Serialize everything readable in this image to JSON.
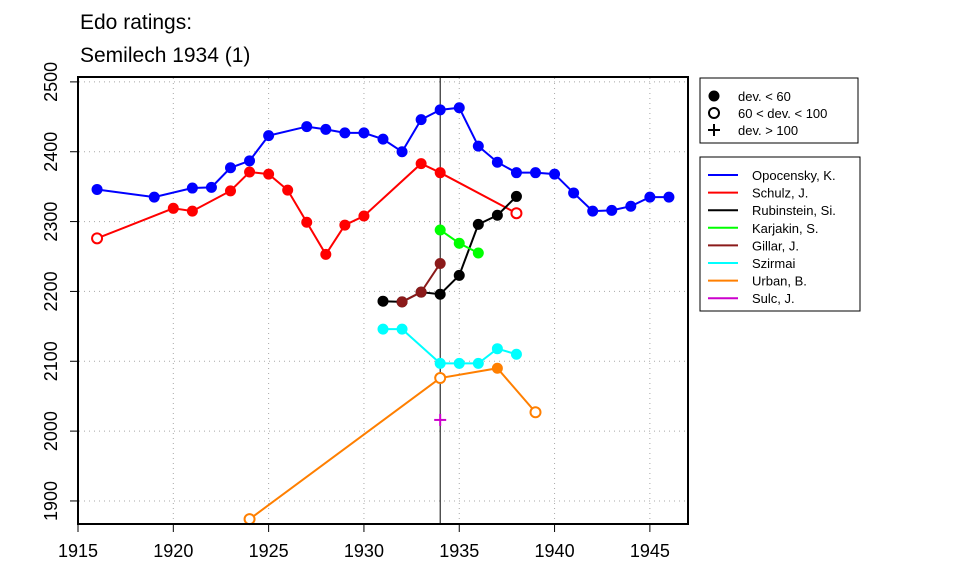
{
  "chart_data": {
    "type": "line",
    "title": "Edo ratings:",
    "subtitle": "Semilech 1934 (1)",
    "xlabel": "",
    "ylabel": "",
    "xlim": [
      1915,
      1947
    ],
    "ylim": [
      1867,
      2507
    ],
    "x_ticks": [
      1915,
      1920,
      1925,
      1930,
      1935,
      1940,
      1945
    ],
    "y_ticks": [
      1900,
      2000,
      2100,
      2200,
      2300,
      2400,
      2500
    ],
    "grid": true,
    "marker_line": {
      "x": 1934
    },
    "marker_legend": {
      "placement": "top-right, outside plot",
      "items": [
        {
          "symbol": "filled-circle",
          "label": "dev. < 60"
        },
        {
          "symbol": "open-circle",
          "label": "60 < dev. < 100"
        },
        {
          "symbol": "plus",
          "label": "dev. > 100"
        }
      ]
    },
    "legend_placement": "right, outside plot",
    "series": [
      {
        "name": "Opocensky, K.",
        "color": "#0000ff",
        "points": [
          {
            "x": 1916,
            "y": 2346,
            "m": "filled"
          },
          {
            "x": 1919,
            "y": 2335,
            "m": "filled"
          },
          {
            "x": 1921,
            "y": 2348,
            "m": "filled"
          },
          {
            "x": 1922,
            "y": 2349,
            "m": "filled"
          },
          {
            "x": 1923,
            "y": 2377,
            "m": "filled"
          },
          {
            "x": 1924,
            "y": 2387,
            "m": "filled"
          },
          {
            "x": 1925,
            "y": 2423,
            "m": "filled"
          },
          {
            "x": 1927,
            "y": 2436,
            "m": "filled"
          },
          {
            "x": 1928,
            "y": 2432,
            "m": "filled"
          },
          {
            "x": 1929,
            "y": 2427,
            "m": "filled"
          },
          {
            "x": 1930,
            "y": 2427,
            "m": "filled"
          },
          {
            "x": 1931,
            "y": 2418,
            "m": "filled"
          },
          {
            "x": 1932,
            "y": 2400,
            "m": "filled"
          },
          {
            "x": 1933,
            "y": 2446,
            "m": "filled"
          },
          {
            "x": 1934,
            "y": 2460,
            "m": "filled"
          },
          {
            "x": 1935,
            "y": 2463,
            "m": "filled"
          },
          {
            "x": 1936,
            "y": 2408,
            "m": "filled"
          },
          {
            "x": 1937,
            "y": 2385,
            "m": "filled"
          },
          {
            "x": 1938,
            "y": 2370,
            "m": "filled"
          },
          {
            "x": 1939,
            "y": 2370,
            "m": "filled"
          },
          {
            "x": 1940,
            "y": 2368,
            "m": "filled"
          },
          {
            "x": 1941,
            "y": 2341,
            "m": "filled"
          },
          {
            "x": 1942,
            "y": 2315,
            "m": "filled"
          },
          {
            "x": 1943,
            "y": 2316,
            "m": "filled"
          },
          {
            "x": 1944,
            "y": 2322,
            "m": "filled"
          },
          {
            "x": 1945,
            "y": 2335,
            "m": "filled"
          },
          {
            "x": 1946,
            "y": 2335,
            "m": "filled"
          }
        ]
      },
      {
        "name": "Schulz, J.",
        "color": "#ff0000",
        "points": [
          {
            "x": 1916,
            "y": 2276,
            "m": "open"
          },
          {
            "x": 1920,
            "y": 2319,
            "m": "filled"
          },
          {
            "x": 1921,
            "y": 2315,
            "m": "filled"
          },
          {
            "x": 1923,
            "y": 2344,
            "m": "filled"
          },
          {
            "x": 1924,
            "y": 2371,
            "m": "filled"
          },
          {
            "x": 1925,
            "y": 2368,
            "m": "filled"
          },
          {
            "x": 1926,
            "y": 2345,
            "m": "filled"
          },
          {
            "x": 1927,
            "y": 2299,
            "m": "filled"
          },
          {
            "x": 1928,
            "y": 2253,
            "m": "filled"
          },
          {
            "x": 1929,
            "y": 2295,
            "m": "filled"
          },
          {
            "x": 1930,
            "y": 2308,
            "m": "filled"
          },
          {
            "x": 1933,
            "y": 2383,
            "m": "filled"
          },
          {
            "x": 1934,
            "y": 2370,
            "m": "filled"
          },
          {
            "x": 1938,
            "y": 2312,
            "m": "open"
          }
        ]
      },
      {
        "name": "Rubinstein, Si.",
        "color": "#000000",
        "points": [
          {
            "x": 1931,
            "y": 2186,
            "m": "filled"
          },
          {
            "x": 1932,
            "y": 2185,
            "m": "filled"
          },
          {
            "x": 1933,
            "y": 2199,
            "m": "filled"
          },
          {
            "x": 1934,
            "y": 2196,
            "m": "filled"
          },
          {
            "x": 1935,
            "y": 2223,
            "m": "filled"
          },
          {
            "x": 1936,
            "y": 2296,
            "m": "filled"
          },
          {
            "x": 1937,
            "y": 2309,
            "m": "filled"
          },
          {
            "x": 1938,
            "y": 2336,
            "m": "filled"
          }
        ]
      },
      {
        "name": "Karjakin, S.",
        "color": "#00ff00",
        "points": [
          {
            "x": 1934,
            "y": 2288,
            "m": "filled"
          },
          {
            "x": 1935,
            "y": 2269,
            "m": "filled"
          },
          {
            "x": 1936,
            "y": 2255,
            "m": "filled"
          }
        ]
      },
      {
        "name": "Gillar, J.",
        "color": "#8b1a1a",
        "points": [
          {
            "x": 1932,
            "y": 2185,
            "m": "filled"
          },
          {
            "x": 1933,
            "y": 2199,
            "m": "filled"
          },
          {
            "x": 1934,
            "y": 2240,
            "m": "filled"
          }
        ]
      },
      {
        "name": "Szirmai",
        "color": "#00ffff",
        "points": [
          {
            "x": 1931,
            "y": 2146,
            "m": "filled"
          },
          {
            "x": 1932,
            "y": 2146,
            "m": "filled"
          },
          {
            "x": 1934,
            "y": 2097,
            "m": "filled"
          },
          {
            "x": 1935,
            "y": 2097,
            "m": "filled"
          },
          {
            "x": 1936,
            "y": 2097,
            "m": "filled"
          },
          {
            "x": 1937,
            "y": 2118,
            "m": "filled"
          },
          {
            "x": 1938,
            "y": 2110,
            "m": "filled"
          }
        ]
      },
      {
        "name": "Urban, B.",
        "color": "#ff7f00",
        "points": [
          {
            "x": 1924,
            "y": 1874,
            "m": "open"
          },
          {
            "x": 1934,
            "y": 2076,
            "m": "open"
          },
          {
            "x": 1937,
            "y": 2090,
            "m": "filled"
          },
          {
            "x": 1939,
            "y": 2027,
            "m": "open"
          }
        ]
      },
      {
        "name": "Sulc, J.",
        "color": "#cc00cc",
        "points": [
          {
            "x": 1934,
            "y": 2016,
            "m": "plus"
          }
        ]
      }
    ]
  }
}
